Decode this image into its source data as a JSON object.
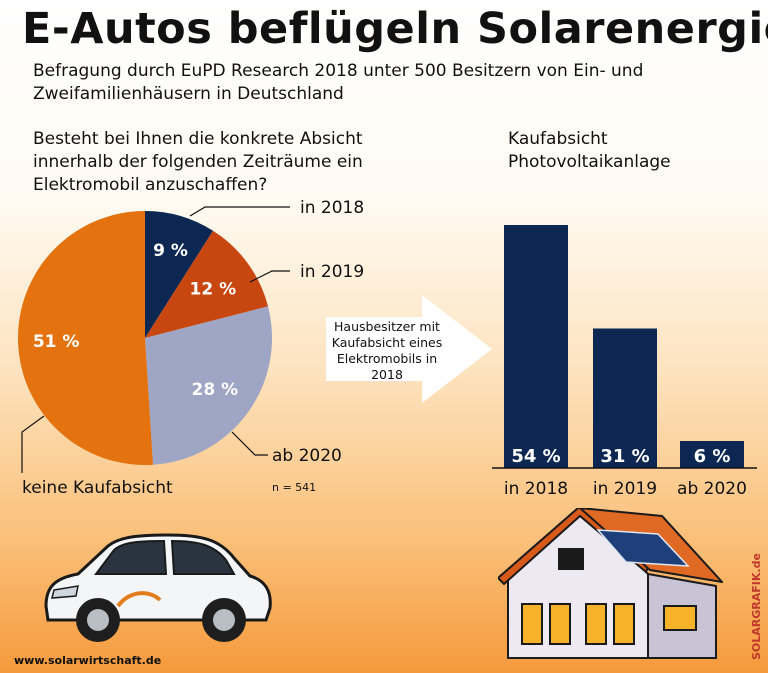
{
  "title": "E-Autos beflügeln Solarenergie",
  "subtitle": "Befragung durch EuPD Research 2018 unter 500 Besitzern von Ein- und Zweifamilienhäusern in Deutschland",
  "website": "www.solarwirtschaft.de",
  "credit": "SOLARGRAFIK.de",
  "arrow_text": "Hausbesitzer mit Kaufabsicht eines Elektromobils in 2018",
  "colors": {
    "navy": "#0d2753",
    "rust": "#c8460f",
    "lavender": "#9fa5c4",
    "orange": "#e4720e"
  },
  "chart_data": [
    {
      "type": "pie",
      "title": "Besteht bei Ihnen die konkrete Absicht innerhalb der folgenden Zeiträume ein Elektromobil anzuschaffen?",
      "note": "n = 541",
      "slices": [
        {
          "label": "in 2018",
          "value": 9,
          "value_label": "9 %",
          "color": "#0d2753"
        },
        {
          "label": "in 2019",
          "value": 12,
          "value_label": "12 %",
          "color": "#c8460f"
        },
        {
          "label": "ab 2020",
          "value": 28,
          "value_label": "28 %",
          "color": "#9fa5c4"
        },
        {
          "label": "keine Kaufabsicht",
          "value": 51,
          "value_label": "51 %",
          "color": "#e4720e"
        }
      ]
    },
    {
      "type": "bar",
      "title": "Kaufabsicht Photovoltaikanlage",
      "categories": [
        "in 2018",
        "in 2019",
        "ab 2020"
      ],
      "values": [
        54,
        31,
        6
      ],
      "value_labels": [
        "54 %",
        "31 %",
        "6 %"
      ],
      "ylim": [
        0,
        60
      ],
      "color": "#0d2753"
    }
  ]
}
